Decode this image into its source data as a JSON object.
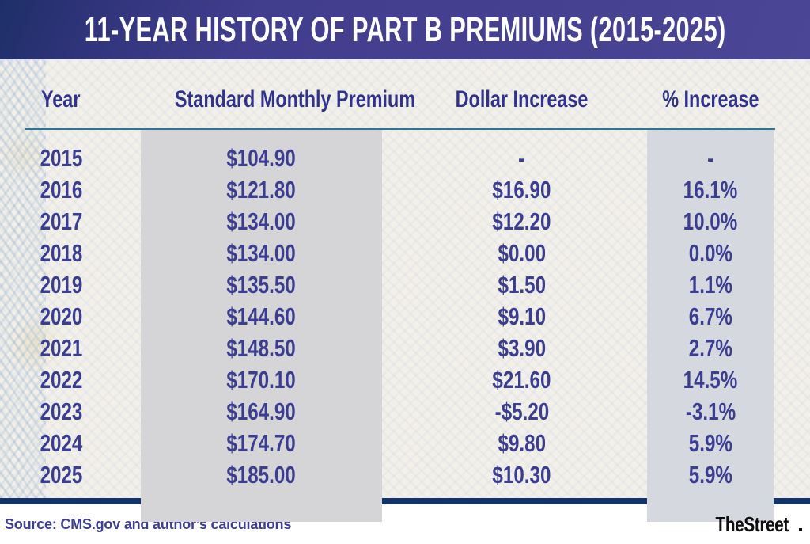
{
  "title": "11-YEAR HISTORY OF PART B PREMIUMS (2015-2025)",
  "table": {
    "columns": [
      "Year",
      "Standard Monthly Premium",
      "Dollar Increase",
      "% Increase"
    ],
    "rows": [
      [
        "2015",
        "$104.90",
        "-",
        "-"
      ],
      [
        "2016",
        "$121.80",
        "$16.90",
        "16.1%"
      ],
      [
        "2017",
        "$134.00",
        "$12.20",
        "10.0%"
      ],
      [
        "2018",
        "$134.00",
        "$0.00",
        "0.0%"
      ],
      [
        "2019",
        "$135.50",
        "$1.50",
        "1.1%"
      ],
      [
        "2020",
        "$144.60",
        "$9.10",
        "6.7%"
      ],
      [
        "2021",
        "$148.50",
        "$3.90",
        "2.7%"
      ],
      [
        "2022",
        "$170.10",
        "$21.60",
        "14.5%"
      ],
      [
        "2023",
        "$164.90",
        "-$5.20",
        "-3.1%"
      ],
      [
        "2024",
        "$174.70",
        "$9.80",
        "5.9%"
      ],
      [
        "2025",
        "$185.00",
        "$10.30",
        "5.9%"
      ]
    ]
  },
  "footer": {
    "source": "Source: CMS.gov and author's calculations",
    "brand": "TheStreet"
  },
  "colors": {
    "title_band_purple": "#433e8e",
    "title_band_dark_navy": "#1d2f68",
    "title_text": "#ffffff",
    "table_background": "#f3f0ea",
    "header_text": "#31338a",
    "data_text": "#3b3e90",
    "header_rule": "#2e7492",
    "premium_column_band": "#d5d4d6",
    "percent_column_band": "#d5d8df",
    "bottom_bar_navy": "#14336b",
    "source_text": "#3c3f92",
    "brand_text": "#0e0e0e"
  },
  "chart_data": {
    "type": "table",
    "title": "11-Year History of Part B Premiums (2015-2025)",
    "columns": [
      "Year",
      "Standard Monthly Premium",
      "Dollar Increase",
      "% Increase"
    ],
    "years": [
      2015,
      2016,
      2017,
      2018,
      2019,
      2020,
      2021,
      2022,
      2023,
      2024,
      2025
    ],
    "standard_monthly_premium_usd": [
      104.9,
      121.8,
      134.0,
      134.0,
      135.5,
      144.6,
      148.5,
      170.1,
      164.9,
      174.7,
      185.0
    ],
    "dollar_increase_usd": [
      null,
      16.9,
      12.2,
      0.0,
      1.5,
      9.1,
      3.9,
      21.6,
      -5.2,
      9.8,
      10.3
    ],
    "percent_increase": [
      null,
      16.1,
      10.0,
      0.0,
      1.1,
      6.7,
      2.7,
      14.5,
      -3.1,
      5.9,
      5.9
    ],
    "source": "CMS.gov and author's calculations"
  }
}
